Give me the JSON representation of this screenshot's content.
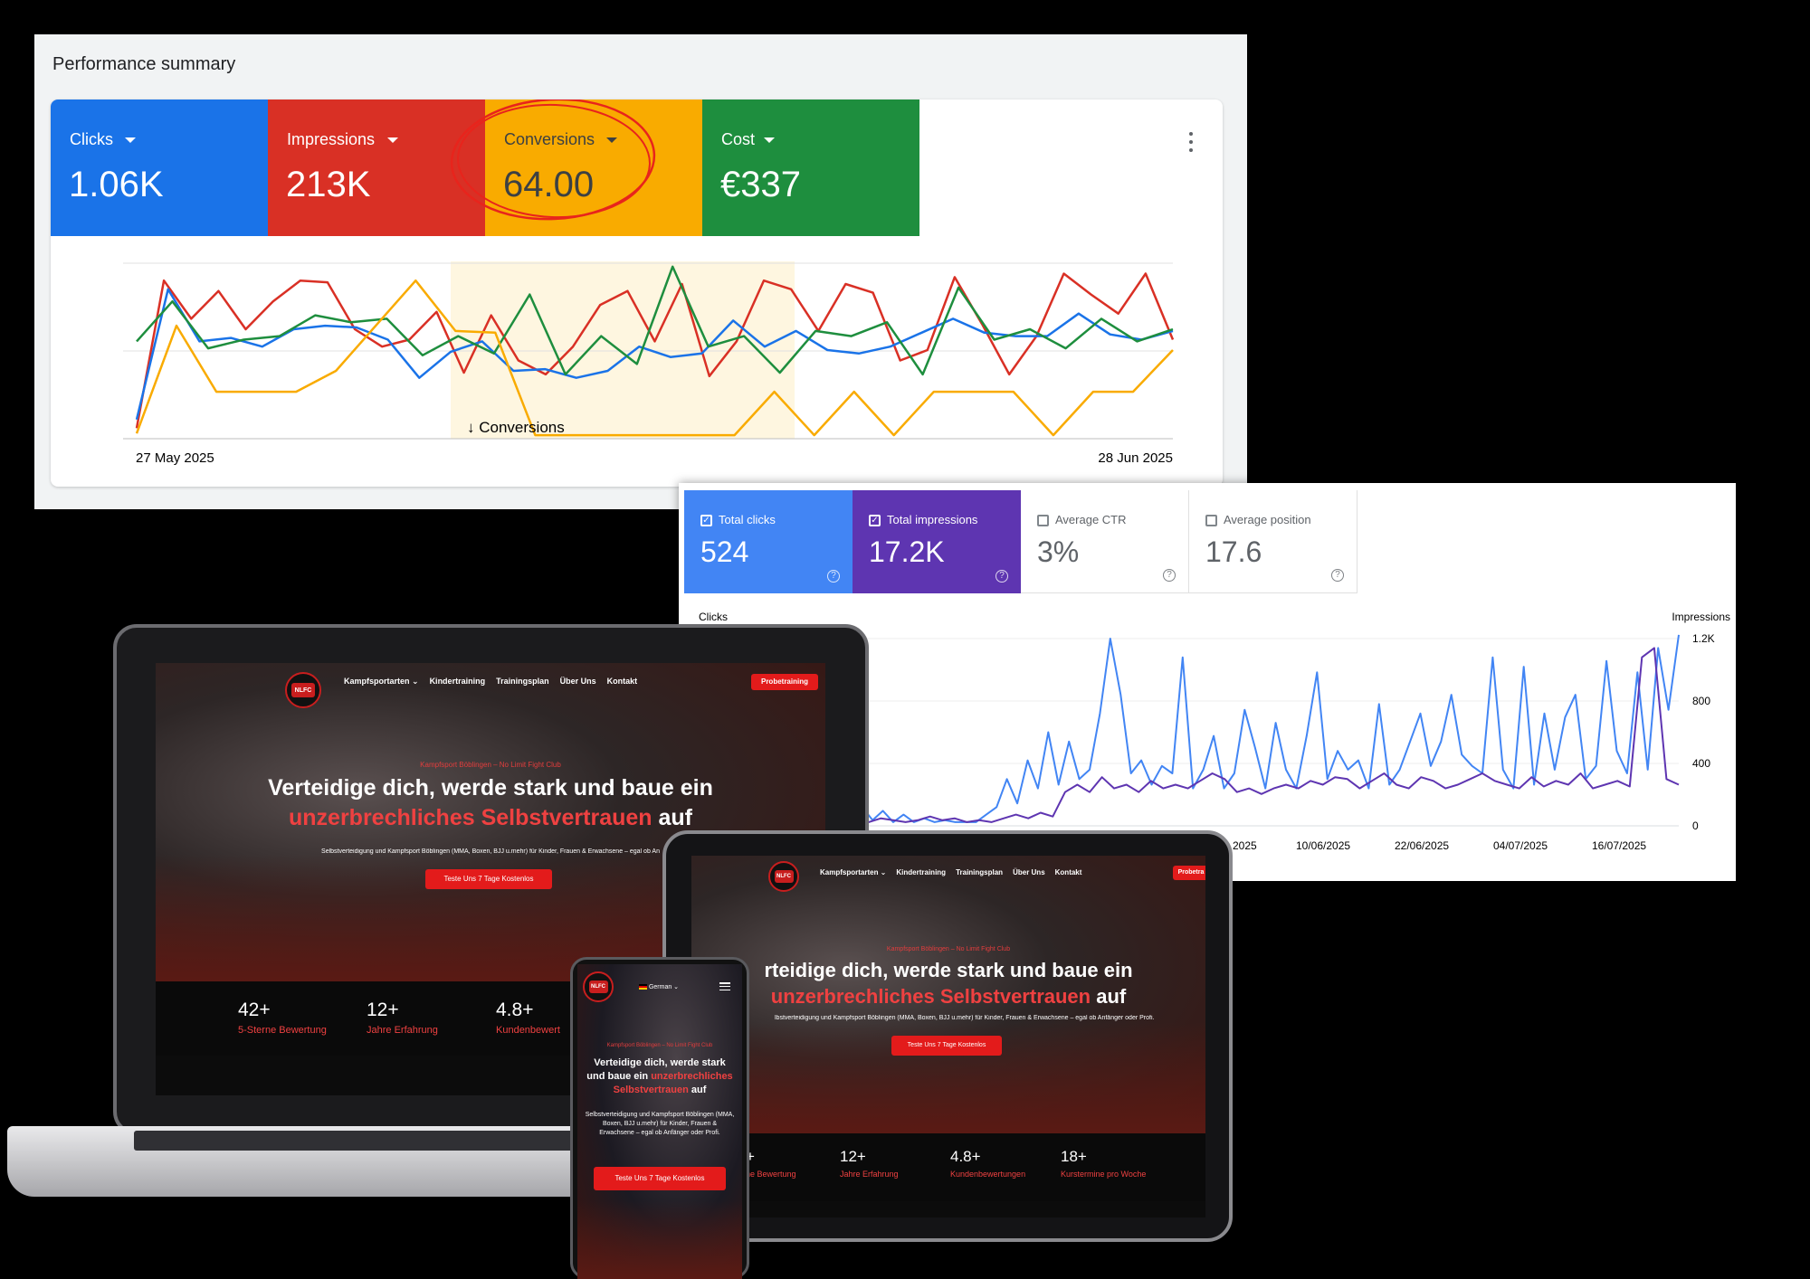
{
  "ads": {
    "title": "Performance summary",
    "tiles": [
      {
        "label": "Clicks",
        "value": "1.06K",
        "color": "#1a73e8"
      },
      {
        "label": "Impressions",
        "value": "213K",
        "color": "#d93025"
      },
      {
        "label": "Conversions",
        "value": "64.00",
        "color": "#f9ab00"
      },
      {
        "label": "Cost",
        "value": "€337",
        "color": "#1e8e3e"
      }
    ],
    "chart": {
      "start_date": "27 May 2025",
      "end_date": "28 Jun 2025",
      "selection_label": "Conversions"
    }
  },
  "chart_data": {
    "type": "line",
    "x_range": [
      "27 May 2025",
      "28 Jun 2025"
    ],
    "grid": true,
    "legend": "none",
    "series": [
      {
        "color": "#d93025",
        "values": [
          0.05,
          0.9,
          0.68,
          0.84,
          0.62,
          0.78,
          0.9,
          0.89,
          0.62,
          0.52,
          0.56,
          0.72,
          0.37,
          0.7,
          0.44,
          0.36,
          0.52,
          0.76,
          0.84,
          0.55,
          0.88,
          0.35,
          0.55,
          0.9,
          0.85,
          0.61,
          0.88,
          0.83,
          0.44,
          0.5,
          0.92,
          0.65,
          0.36,
          0.58,
          0.94,
          0.82,
          0.71,
          0.94,
          0.56
        ]
      },
      {
        "color": "#1a73e8",
        "values": [
          0.1,
          0.85,
          0.55,
          0.57,
          0.52,
          0.62,
          0.64,
          0.63,
          0.56,
          0.34,
          0.49,
          0.55,
          0.38,
          0.39,
          0.34,
          0.38,
          0.52,
          0.46,
          0.48,
          0.67,
          0.52,
          0.61,
          0.5,
          0.48,
          0.52,
          0.6,
          0.68,
          0.6,
          0.58,
          0.58,
          0.71,
          0.59,
          0.56,
          0.61
        ]
      },
      {
        "color": "#1e8e3e",
        "values": [
          0.55,
          0.78,
          0.51,
          0.56,
          0.58,
          0.7,
          0.66,
          0.68,
          0.47,
          0.58,
          0.48,
          0.82,
          0.36,
          0.58,
          0.42,
          0.98,
          0.52,
          0.58,
          0.37,
          0.61,
          0.58,
          0.66,
          0.36,
          0.86,
          0.56,
          0.62,
          0.51,
          0.68,
          0.55,
          0.62
        ]
      },
      {
        "color": "#f9ab00",
        "values": [
          0.02,
          0.64,
          0.26,
          0.26,
          0.26,
          0.38,
          0.64,
          0.9,
          0.61,
          0.6,
          0.01,
          0.01,
          0.01,
          0.01,
          0.01,
          0.01,
          0.26,
          0.01,
          0.26,
          0.01,
          0.26,
          0.26,
          0.26,
          0.01,
          0.26,
          0.26,
          0.5
        ]
      }
    ]
  },
  "gsc": {
    "tiles": [
      {
        "label": "Total clicks",
        "value": "524",
        "checked": true,
        "color": "#4285f4"
      },
      {
        "label": "Total impressions",
        "value": "17.2K",
        "checked": true,
        "color": "#5e35b1"
      },
      {
        "label": "Average CTR",
        "value": "3%",
        "checked": false
      },
      {
        "label": "Average position",
        "value": "17.6",
        "checked": false
      }
    ],
    "left_axis_title": "Clicks",
    "right_axis_title": "Impressions",
    "right_ticks": [
      "1.2K",
      "800",
      "400",
      "0"
    ],
    "x_labels": [
      "2025",
      "10/06/2025",
      "22/06/2025",
      "04/07/2025",
      "16/07/2025"
    ],
    "chart_data": {
      "type": "line",
      "series": [
        {
          "name": "Total clicks",
          "color": "#4285f4",
          "values": [
            0.02,
            0.32,
            0.05,
            0.1,
            0.28,
            0.02,
            0.24,
            0.06,
            0.3,
            0.1,
            0.2,
            0.04,
            0.15,
            0.02,
            0.12,
            0.04,
            0.1,
            0.03,
            0.08,
            0.02,
            0.06,
            0.02,
            0.04,
            0.02,
            0.03,
            0.02,
            0.02,
            0.02,
            0.06,
            0.1,
            0.25,
            0.12,
            0.35,
            0.2,
            0.5,
            0.22,
            0.45,
            0.25,
            0.3,
            0.6,
            1.0,
            0.7,
            0.28,
            0.35,
            0.22,
            0.32,
            0.28,
            0.9,
            0.2,
            0.3,
            0.48,
            0.2,
            0.28,
            0.62,
            0.42,
            0.2,
            0.55,
            0.3,
            0.2,
            0.48,
            0.82,
            0.25,
            0.4,
            0.3,
            0.35,
            0.2,
            0.65,
            0.22,
            0.3,
            0.45,
            0.6,
            0.32,
            0.45,
            0.7,
            0.38,
            0.32,
            0.28,
            0.9,
            0.3,
            0.2,
            0.85,
            0.22,
            0.6,
            0.3,
            0.58,
            0.7,
            0.25,
            0.32,
            0.88,
            0.4,
            0.28,
            0.82,
            0.3,
            0.95,
            0.62,
            1.02
          ]
        },
        {
          "name": "Total impressions",
          "color": "#5e35b1",
          "values": [
            0.02,
            0.04,
            0.02,
            0.03,
            0.02,
            0.04,
            0.03,
            0.04,
            0.02,
            0.03,
            0.02,
            0.03,
            0.02,
            0.03,
            0.02,
            0.04,
            0.03,
            0.02,
            0.03,
            0.05,
            0.03,
            0.04,
            0.02,
            0.03,
            0.02,
            0.04,
            0.06,
            0.04,
            0.07,
            0.05,
            0.18,
            0.22,
            0.18,
            0.26,
            0.2,
            0.22,
            0.18,
            0.24,
            0.2,
            0.22,
            0.2,
            0.24,
            0.28,
            0.25,
            0.18,
            0.2,
            0.17,
            0.2,
            0.22,
            0.2,
            0.24,
            0.22,
            0.26,
            0.25,
            0.2,
            0.24,
            0.28,
            0.22,
            0.2,
            0.26,
            0.24,
            0.2,
            0.22,
            0.25,
            0.28,
            0.24,
            0.22,
            0.2,
            0.26,
            0.21,
            0.24,
            0.22,
            0.28,
            0.2,
            0.22,
            0.24,
            0.21,
            0.9,
            0.95,
            0.25,
            0.22
          ]
        }
      ]
    }
  },
  "site": {
    "nav": [
      "Kampfsportarten ⌄",
      "Kindertraining",
      "Trainingsplan",
      "Über Uns",
      "Kontakt"
    ],
    "cta_top": "Probetraining",
    "eyebrow": "Kampfsport Böblingen – No Limit Fight Club",
    "headline_1": "Verteidige dich, werde stark und baue ein",
    "headline_red": "unzerbrechliches Selbstvertrauen",
    "headline_end": "auf",
    "sub": "Selbstverteidigung und Kampfsport Böblingen (MMA, Boxen, BJJ u.mehr) für Kinder, Frauen & Erwachsene – egal ob Anfänger oder Profi.",
    "cta": "Teste Uns 7 Tage Kostenlos",
    "stats": [
      {
        "value": "42+",
        "label": "5-Sterne Bewertung"
      },
      {
        "value": "12+",
        "label": "Jahre Erfahrung"
      },
      {
        "value": "4.8+",
        "label": "Kundenbewertungen"
      },
      {
        "value": "18+",
        "label": "Kurstermine pro Woche"
      }
    ],
    "language": "German ⌄",
    "logo_text": "NLFC"
  },
  "laptop_visible": {
    "sub": "Selbstverteidigung und Kampfsport Böblingen (MMA, Boxen, BJJ u.mehr) für Kinder, Frauen & Erwachsene – egal ob An",
    "stat_3_label": "Kundenbewert"
  },
  "tablet_visible": {
    "headline_1": "rteidige dich, werde stark und baue ein",
    "sub": "lbstverteidigung und Kampfsport Böblingen (MMA, Boxen, BJJ u.mehr) für Kinder, Frauen & Erwachsene – egal ob Anfänger oder Profi.",
    "stat_1_label": "ne Bewertung",
    "cta_top": "Probetra"
  }
}
